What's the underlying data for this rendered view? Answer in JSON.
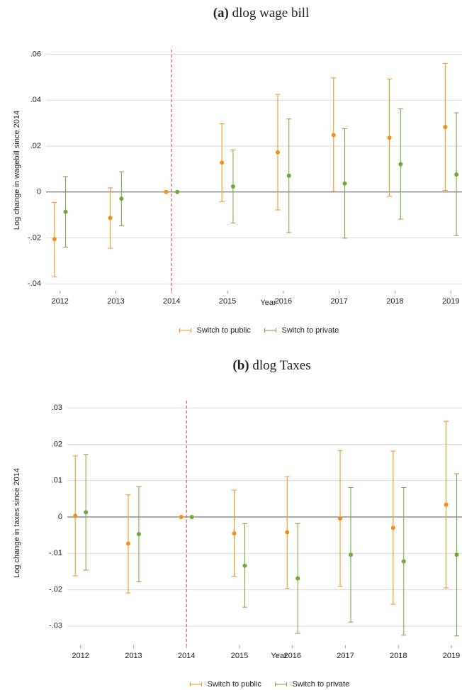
{
  "chart_data": [
    {
      "type": "errorbar",
      "label": "(a)",
      "title": "dlog wage bill",
      "xlabel": "Year",
      "ylabel": "Log change in wagebill since 2014",
      "x": [
        2012,
        2013,
        2014,
        2015,
        2016,
        2017,
        2018,
        2019
      ],
      "xlim": [
        2011.75,
        2019.2
      ],
      "xticks": [
        2012,
        2013,
        2014,
        2015,
        2016,
        2017,
        2018,
        2019
      ],
      "ylim": [
        -0.043,
        0.062
      ],
      "yticks": [
        {
          "value": -0.04,
          "label": "-.04"
        },
        {
          "value": -0.02,
          "label": "-.02"
        },
        0,
        {
          "value": 0.02,
          "label": ".02"
        },
        {
          "value": 0.04,
          "label": ".04"
        },
        {
          "value": 0.06,
          "label": ".06"
        }
      ],
      "grid": true,
      "vline": 2014,
      "vline_color": "#e8544a",
      "legend": "bottom",
      "series": [
        {
          "name": "Switch to public",
          "color": "#f28e1c",
          "values": [
            -0.0205,
            -0.0113,
            0,
            0.0128,
            0.0173,
            0.0248,
            0.0236,
            0.0283
          ],
          "lower": [
            -0.037,
            -0.0245,
            0,
            -0.0042,
            -0.0078,
            0.0002,
            -0.0018,
            0.0007
          ],
          "upper": [
            -0.0045,
            0.0018,
            0,
            0.0297,
            0.0425,
            0.0497,
            0.0492,
            0.056
          ]
        },
        {
          "name": "Switch to private",
          "color": "#6fa83b",
          "values": [
            -0.0086,
            -0.0029,
            0,
            0.0024,
            0.0071,
            0.0037,
            0.0121,
            0.0076
          ],
          "lower": [
            -0.024,
            -0.0147,
            0,
            -0.0135,
            -0.0177,
            -0.0201,
            -0.0118,
            -0.019
          ],
          "upper": [
            0.0067,
            0.0088,
            0,
            0.0183,
            0.0318,
            0.0276,
            0.0362,
            0.0345
          ]
        }
      ]
    },
    {
      "type": "errorbar",
      "label": "(b)",
      "title": "dlog Taxes",
      "xlabel": "Year",
      "ylabel": "Log change in taxes since 2014",
      "x": [
        2012,
        2013,
        2014,
        2015,
        2016,
        2017,
        2018,
        2019
      ],
      "xlim": [
        2011.75,
        2019.2
      ],
      "xticks": [
        2012,
        2013,
        2014,
        2015,
        2016,
        2017,
        2018,
        2019
      ],
      "ylim": [
        -0.0353,
        0.032
      ],
      "yticks": [
        {
          "value": -0.03,
          "label": "-.03"
        },
        {
          "value": -0.02,
          "label": "-.02"
        },
        {
          "value": -0.01,
          "label": "-.01"
        },
        0,
        {
          "value": 0.01,
          "label": ".01"
        },
        {
          "value": 0.02,
          "label": ".02"
        },
        {
          "value": 0.03,
          "label": ".03"
        }
      ],
      "grid": true,
      "vline": 2014,
      "vline_color": "#e8544a",
      "legend": "bottom",
      "series": [
        {
          "name": "Switch to public",
          "color": "#f28e1c",
          "values": [
            0.0003,
            -0.0073,
            0,
            -0.0045,
            -0.0042,
            -0.0004,
            -0.003,
            0.0034
          ],
          "lower": [
            -0.0162,
            -0.0209,
            0,
            -0.0163,
            -0.0196,
            -0.0191,
            -0.024,
            -0.0195
          ],
          "upper": [
            0.0168,
            0.0061,
            0,
            0.0074,
            0.0111,
            0.0183,
            0.0181,
            0.0263
          ]
        },
        {
          "name": "Switch to private",
          "color": "#6fa83b",
          "values": [
            0.0013,
            -0.0047,
            0,
            -0.0134,
            -0.0169,
            -0.0104,
            -0.0122,
            -0.0104
          ],
          "lower": [
            -0.0146,
            -0.0178,
            0,
            -0.0248,
            -0.032,
            -0.0289,
            -0.0325,
            -0.0327
          ],
          "upper": [
            0.0172,
            0.0083,
            0,
            -0.0018,
            -0.0018,
            0.0081,
            0.0081,
            0.0119
          ]
        }
      ]
    }
  ]
}
